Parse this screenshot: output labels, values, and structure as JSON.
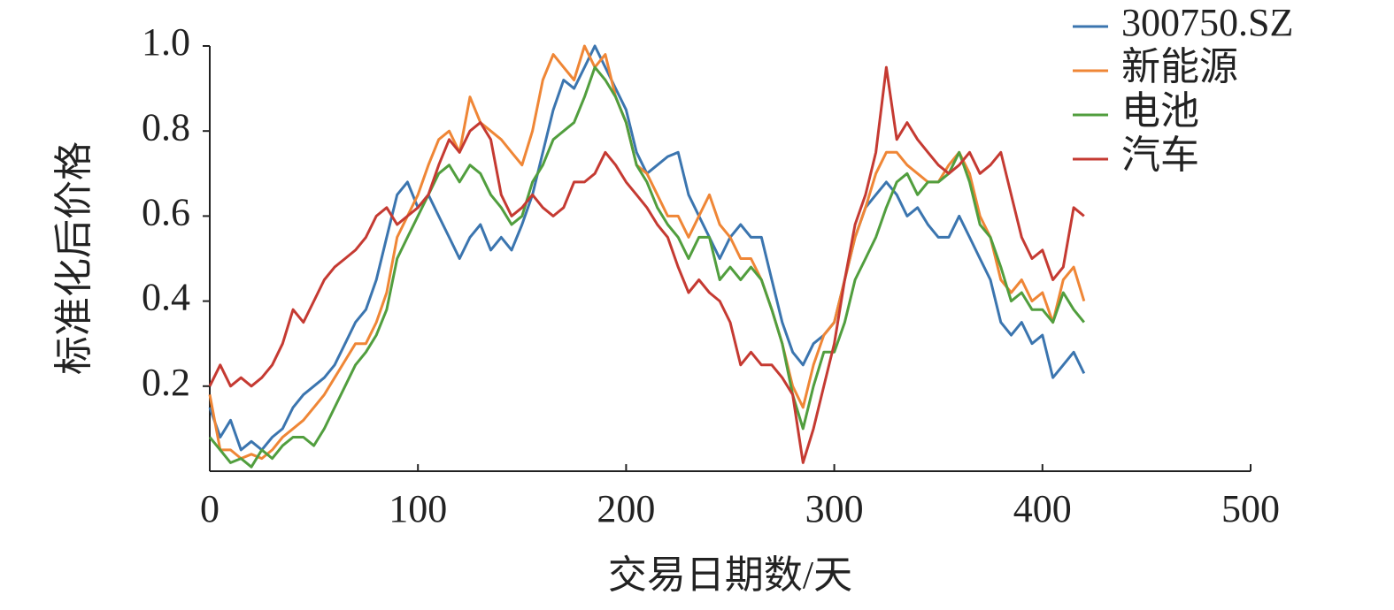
{
  "chart_data": {
    "type": "line",
    "xlabel": "交易日期数/天",
    "ylabel": "标准化后价格",
    "x": [
      0,
      5,
      10,
      15,
      20,
      25,
      30,
      35,
      40,
      45,
      50,
      55,
      60,
      65,
      70,
      75,
      80,
      85,
      90,
      95,
      100,
      105,
      110,
      115,
      120,
      125,
      130,
      135,
      140,
      145,
      150,
      155,
      160,
      165,
      170,
      175,
      180,
      185,
      190,
      195,
      200,
      205,
      210,
      215,
      220,
      225,
      230,
      235,
      240,
      245,
      250,
      255,
      260,
      265,
      270,
      275,
      280,
      285,
      290,
      295,
      300,
      305,
      310,
      315,
      320,
      325,
      330,
      335,
      340,
      345,
      350,
      355,
      360,
      365,
      370,
      375,
      380,
      385,
      390,
      395,
      400,
      405,
      410,
      415,
      420
    ],
    "series": [
      {
        "name": "300750.SZ",
        "color": "#3b75af",
        "values": [
          0.15,
          0.08,
          0.12,
          0.05,
          0.07,
          0.05,
          0.08,
          0.1,
          0.15,
          0.18,
          0.2,
          0.22,
          0.25,
          0.3,
          0.35,
          0.38,
          0.45,
          0.55,
          0.65,
          0.68,
          0.62,
          0.65,
          0.6,
          0.55,
          0.5,
          0.55,
          0.58,
          0.52,
          0.55,
          0.52,
          0.58,
          0.65,
          0.75,
          0.85,
          0.92,
          0.9,
          0.95,
          1.0,
          0.95,
          0.9,
          0.85,
          0.75,
          0.7,
          0.72,
          0.74,
          0.75,
          0.65,
          0.6,
          0.55,
          0.5,
          0.55,
          0.58,
          0.55,
          0.55,
          0.45,
          0.35,
          0.28,
          0.25,
          0.3,
          0.32,
          0.35,
          0.45,
          0.55,
          0.62,
          0.65,
          0.68,
          0.65,
          0.6,
          0.62,
          0.58,
          0.55,
          0.55,
          0.6,
          0.55,
          0.5,
          0.45,
          0.35,
          0.32,
          0.35,
          0.3,
          0.32,
          0.22,
          0.25,
          0.28,
          0.23
        ]
      },
      {
        "name": "新能源",
        "color": "#ef8636",
        "values": [
          0.18,
          0.05,
          0.05,
          0.03,
          0.04,
          0.03,
          0.05,
          0.08,
          0.1,
          0.12,
          0.15,
          0.18,
          0.22,
          0.26,
          0.3,
          0.3,
          0.35,
          0.42,
          0.55,
          0.6,
          0.65,
          0.72,
          0.78,
          0.8,
          0.75,
          0.88,
          0.82,
          0.8,
          0.78,
          0.75,
          0.72,
          0.8,
          0.92,
          0.98,
          0.95,
          0.92,
          1.0,
          0.95,
          0.98,
          0.88,
          0.82,
          0.72,
          0.7,
          0.65,
          0.6,
          0.6,
          0.55,
          0.6,
          0.65,
          0.58,
          0.55,
          0.5,
          0.5,
          0.45,
          0.38,
          0.3,
          0.2,
          0.15,
          0.25,
          0.32,
          0.35,
          0.45,
          0.55,
          0.62,
          0.7,
          0.75,
          0.75,
          0.72,
          0.7,
          0.68,
          0.68,
          0.72,
          0.75,
          0.7,
          0.6,
          0.55,
          0.45,
          0.42,
          0.45,
          0.4,
          0.42,
          0.35,
          0.45,
          0.48,
          0.4
        ]
      },
      {
        "name": "电池",
        "color": "#519e3e",
        "values": [
          0.08,
          0.05,
          0.02,
          0.03,
          0.01,
          0.05,
          0.03,
          0.06,
          0.08,
          0.08,
          0.06,
          0.1,
          0.15,
          0.2,
          0.25,
          0.28,
          0.32,
          0.38,
          0.5,
          0.55,
          0.6,
          0.65,
          0.7,
          0.72,
          0.68,
          0.72,
          0.7,
          0.65,
          0.62,
          0.58,
          0.6,
          0.68,
          0.72,
          0.78,
          0.8,
          0.82,
          0.88,
          0.95,
          0.92,
          0.88,
          0.82,
          0.72,
          0.68,
          0.62,
          0.58,
          0.55,
          0.5,
          0.55,
          0.55,
          0.45,
          0.48,
          0.45,
          0.48,
          0.45,
          0.38,
          0.3,
          0.18,
          0.1,
          0.2,
          0.28,
          0.28,
          0.35,
          0.45,
          0.5,
          0.55,
          0.62,
          0.68,
          0.7,
          0.65,
          0.68,
          0.68,
          0.7,
          0.75,
          0.68,
          0.58,
          0.55,
          0.48,
          0.4,
          0.42,
          0.38,
          0.38,
          0.35,
          0.42,
          0.38,
          0.35
        ]
      },
      {
        "name": "汽车",
        "color": "#c53a32",
        "values": [
          0.2,
          0.25,
          0.2,
          0.22,
          0.2,
          0.22,
          0.25,
          0.3,
          0.38,
          0.35,
          0.4,
          0.45,
          0.48,
          0.5,
          0.52,
          0.55,
          0.6,
          0.62,
          0.58,
          0.6,
          0.62,
          0.65,
          0.72,
          0.78,
          0.75,
          0.8,
          0.82,
          0.78,
          0.65,
          0.6,
          0.62,
          0.65,
          0.62,
          0.6,
          0.62,
          0.68,
          0.68,
          0.7,
          0.75,
          0.72,
          0.68,
          0.65,
          0.62,
          0.58,
          0.55,
          0.48,
          0.42,
          0.45,
          0.42,
          0.4,
          0.35,
          0.25,
          0.28,
          0.25,
          0.25,
          0.22,
          0.18,
          0.02,
          0.1,
          0.2,
          0.3,
          0.45,
          0.58,
          0.65,
          0.75,
          0.95,
          0.78,
          0.82,
          0.78,
          0.75,
          0.72,
          0.7,
          0.72,
          0.75,
          0.7,
          0.72,
          0.75,
          0.65,
          0.55,
          0.5,
          0.52,
          0.45,
          0.48,
          0.62,
          0.6
        ]
      }
    ],
    "xlim": [
      0,
      500
    ],
    "xticks": [
      0,
      100,
      200,
      300,
      400,
      500
    ],
    "ylim": [
      0,
      1
    ],
    "yticks": [
      0.2,
      0.4,
      0.6,
      0.8,
      {
        "value": 1,
        "label": "1.0"
      }
    ],
    "grid": false,
    "legend": "upper right"
  }
}
